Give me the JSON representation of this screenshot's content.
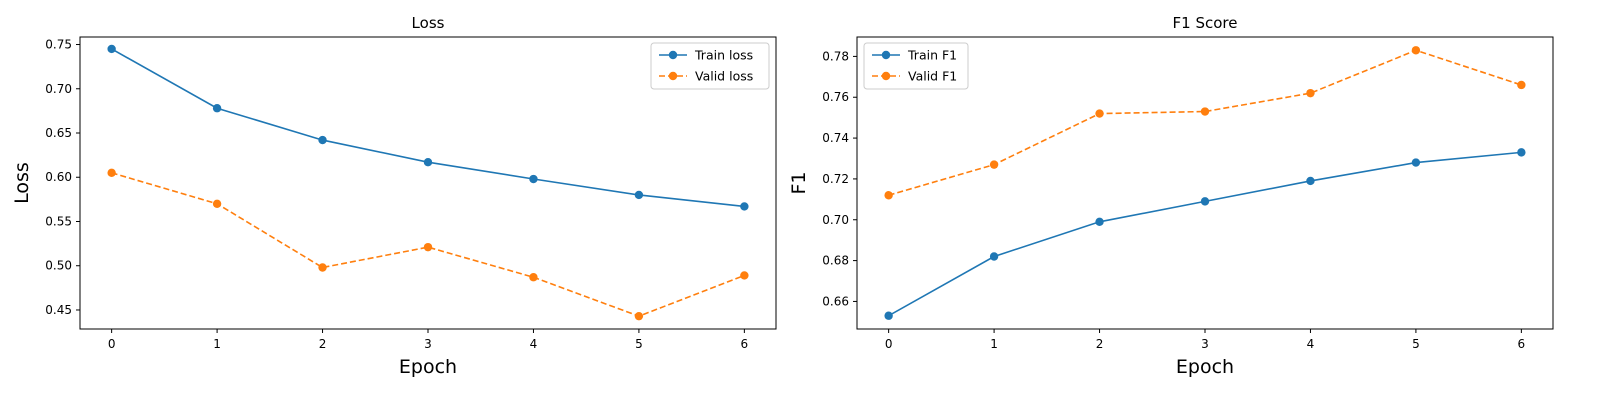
{
  "chart_data": [
    {
      "type": "line",
      "title": "Loss",
      "xlabel": "Epoch",
      "ylabel": "Loss",
      "x": [
        0,
        1,
        2,
        3,
        4,
        5,
        6
      ],
      "xticks": [
        "0",
        "1",
        "2",
        "3",
        "4",
        "5",
        "6"
      ],
      "xlim": [
        -0.3,
        6.3
      ],
      "ylim": [
        0.4285,
        0.7585
      ],
      "yticks": [
        "0.45",
        "0.50",
        "0.55",
        "0.60",
        "0.65",
        "0.70",
        "0.75"
      ],
      "grid": false,
      "legend": "upper-right",
      "series": [
        {
          "name": "Train loss",
          "color": "#1f77b4",
          "style": "solid",
          "marker": "circle",
          "values": [
            0.745,
            0.678,
            0.642,
            0.617,
            0.598,
            0.58,
            0.567
          ]
        },
        {
          "name": "Valid loss",
          "color": "#ff7f0e",
          "style": "dashed",
          "marker": "circle",
          "values": [
            0.605,
            0.57,
            0.498,
            0.521,
            0.487,
            0.443,
            0.489
          ]
        }
      ]
    },
    {
      "type": "line",
      "title": "F1 Score",
      "xlabel": "Epoch",
      "ylabel": "F1",
      "x": [
        0,
        1,
        2,
        3,
        4,
        5,
        6
      ],
      "xticks": [
        "0",
        "1",
        "2",
        "3",
        "4",
        "5",
        "6"
      ],
      "xlim": [
        -0.3,
        6.3
      ],
      "ylim": [
        0.6465,
        0.7895
      ],
      "yticks": [
        "0.66",
        "0.68",
        "0.70",
        "0.72",
        "0.74",
        "0.76",
        "0.78"
      ],
      "grid": false,
      "legend": "upper-left",
      "series": [
        {
          "name": "Train F1",
          "color": "#1f77b4",
          "style": "solid",
          "marker": "circle",
          "values": [
            0.653,
            0.682,
            0.699,
            0.709,
            0.719,
            0.728,
            0.733
          ]
        },
        {
          "name": "Valid F1",
          "color": "#ff7f0e",
          "style": "dashed",
          "marker": "circle",
          "values": [
            0.712,
            0.727,
            0.752,
            0.753,
            0.762,
            0.783,
            0.766
          ]
        }
      ]
    }
  ]
}
